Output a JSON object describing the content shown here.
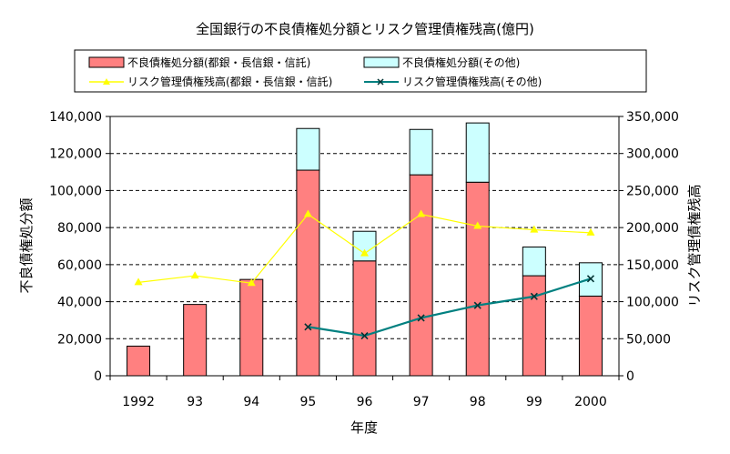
{
  "chart_data": {
    "type": "bar",
    "title": "全国銀行の不良債権処分額とリスク管理債権残高(億円)",
    "xlabel": "年度",
    "ylabel": "不良債権処分額",
    "y2label": "リスク管理債権残高",
    "categories": [
      "1992",
      "93",
      "94",
      "95",
      "96",
      "97",
      "98",
      "99",
      "2000"
    ],
    "ylim": [
      0,
      140000
    ],
    "y_ticks": [
      0,
      20000,
      40000,
      60000,
      80000,
      100000,
      120000,
      140000
    ],
    "y_tick_labels": [
      "0",
      "20,000",
      "40,000",
      "60,000",
      "80,000",
      "100,000",
      "120,000",
      "140,000"
    ],
    "y2lim": [
      0,
      350000
    ],
    "y2_ticks": [
      0,
      50000,
      100000,
      150000,
      200000,
      250000,
      300000,
      350000
    ],
    "y2_tick_labels": [
      "0",
      "50,000",
      "100,000",
      "150,000",
      "200,000",
      "250,000",
      "300,000",
      "350,000"
    ],
    "grid": "horizontal-dashed",
    "legend_position": "top",
    "bar_series": [
      {
        "name": "不良債権処分額(都銀・長信銀・信託)",
        "color": "#ff8080",
        "values": [
          16000,
          38500,
          52000,
          111000,
          62000,
          108500,
          104500,
          54000,
          43000
        ]
      },
      {
        "name": "不良債権処分額(その他)",
        "color": "#ccffff",
        "values": [
          0,
          0,
          0,
          22500,
          16000,
          24500,
          32000,
          15500,
          18000
        ]
      }
    ],
    "line_series": [
      {
        "name": "リスク管理債権残高(都銀・長信銀・信託)",
        "color": "#ffff00",
        "marker": "triangle",
        "axis": "right",
        "values": [
          126000,
          135000,
          125000,
          218000,
          165000,
          218000,
          202000,
          197000,
          193000
        ]
      },
      {
        "name": "リスク管理債権残高(その他)",
        "color": "#008080",
        "marker": "x",
        "axis": "right",
        "values": [
          null,
          null,
          null,
          66000,
          54000,
          78000,
          95000,
          107000,
          131000
        ]
      }
    ]
  }
}
